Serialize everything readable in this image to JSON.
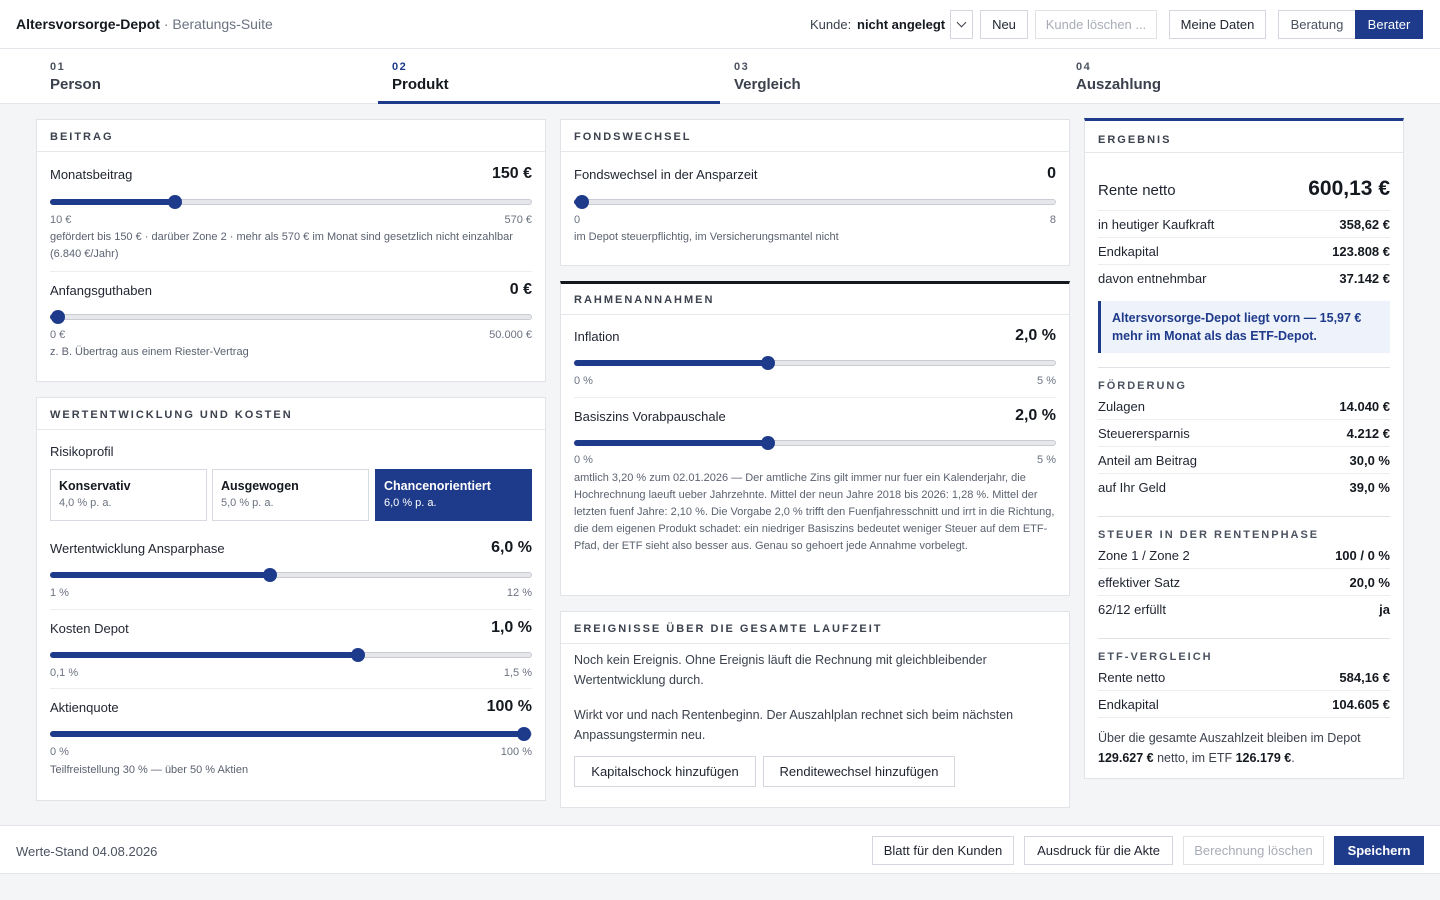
{
  "header": {
    "app_title": "Altersvorsorge-Depot",
    "app_sub": "· Beratungs-Suite",
    "kunde_label": "Kunde:",
    "kunde_value": "nicht angelegt",
    "btn_neu": "Neu",
    "btn_kunde_loeschen": "Kunde löschen ...",
    "btn_meine_daten": "Meine Daten",
    "mode_beratung": "Beratung",
    "mode_berater": "Berater"
  },
  "tabs": [
    {
      "num": "01",
      "label": "Person"
    },
    {
      "num": "02",
      "label": "Produkt"
    },
    {
      "num": "03",
      "label": "Vergleich"
    },
    {
      "num": "04",
      "label": "Auszahlung"
    }
  ],
  "beitrag": {
    "title": "BEITRAG",
    "monatsbeitrag": {
      "label": "Monatsbeitrag",
      "value_text": "150 €",
      "min": "10 €",
      "max": "570 €",
      "value": 150,
      "lo": 10,
      "hi": 570,
      "hint": "gefördert bis 150 € · darüber Zone 2 · mehr als 570 € im Monat sind gesetzlich nicht einzahlbar (6.840 €/Jahr)"
    },
    "anfangsguthaben": {
      "label": "Anfangsguthaben",
      "value_text": "0 €",
      "min": "0 €",
      "max": "50.000 €",
      "value": 0,
      "lo": 0,
      "hi": 50000,
      "hint": "z. B. Übertrag aus einem Riester-Vertrag"
    }
  },
  "wertentwicklung": {
    "title": "WERTENTWICKLUNG UND KOSTEN",
    "risikoprofil_label": "Risikoprofil",
    "profiles": [
      {
        "name": "Konservativ",
        "rate": "4,0 % p. a."
      },
      {
        "name": "Ausgewogen",
        "rate": "5,0 % p. a."
      },
      {
        "name": "Chancenorientiert",
        "rate": "6,0 % p. a."
      }
    ],
    "ansparphase": {
      "label": "Wertentwicklung Ansparphase",
      "value_text": "6,0 %",
      "min": "1 %",
      "max": "12 %",
      "value": 6.0,
      "lo": 1,
      "hi": 12
    },
    "kosten": {
      "label": "Kosten Depot",
      "value_text": "1,0 %",
      "min": "0,1 %",
      "max": "1,5 %",
      "value": 1.0,
      "lo": 0.1,
      "hi": 1.5
    },
    "aktienquote": {
      "label": "Aktienquote",
      "value_text": "100 %",
      "min": "0 %",
      "max": "100 %",
      "value": 100,
      "lo": 0,
      "hi": 100,
      "hint": "Teilfreistellung 30 % — über 50 % Aktien"
    }
  },
  "fondswechsel": {
    "title": "FONDSWECHSEL",
    "slider": {
      "label": "Fondswechsel in der Ansparzeit",
      "value_text": "0",
      "min": "0",
      "max": "8",
      "value": 0,
      "lo": 0,
      "hi": 8,
      "hint": "im Depot steuerpflichtig, im Versicherungsmantel nicht"
    }
  },
  "rahmen": {
    "title": "RAHMENANNAHMEN",
    "inflation": {
      "label": "Inflation",
      "value_text": "2,0 %",
      "min": "0 %",
      "max": "5 %",
      "value": 2.0,
      "lo": 0,
      "hi": 5
    },
    "basiszins": {
      "label": "Basiszins Vorabpauschale",
      "value_text": "2,0 %",
      "min": "0 %",
      "max": "5 %",
      "value": 2.0,
      "lo": 0,
      "hi": 5,
      "hint": "amtlich 3,20 % zum 02.01.2026 — Der amtliche Zins gilt immer nur fuer ein Kalenderjahr, die Hochrechnung laeuft ueber Jahrzehnte. Mittel der neun Jahre 2018 bis 2026: 1,28 %. Mittel der letzten fuenf Jahre: 2,10 %. Die Vorgabe 2,0 % trifft den Fuenfjahresschnitt und irrt in die Richtung, die dem eigenen Produkt schadet: ein niedriger Basiszins bedeutet weniger Steuer auf dem ETF-Pfad, der ETF sieht also besser aus. Genau so gehoert jede Annahme vorbelegt."
    }
  },
  "ereignisse": {
    "title": "EREIGNISSE ÜBER DIE GESAMTE LAUFZEIT",
    "p1": "Noch kein Ereignis. Ohne Ereignis läuft die Rechnung mit gleichbleibender Wertentwicklung durch.",
    "p2": "Wirkt vor und nach Rentenbeginn. Der Auszahlplan rechnet sich beim nächsten Anpassungstermin neu.",
    "btn_kapitalschock": "Kapitalschock hinzufügen",
    "btn_renditewechsel": "Renditewechsel hinzufügen"
  },
  "ergebnis": {
    "title": "ERGEBNIS",
    "rente_label": "Rente netto",
    "rente_value": "600,13 €",
    "rows": [
      {
        "k": "in heutiger Kaufkraft",
        "v": "358,62 €"
      },
      {
        "k": "Endkapital",
        "v": "123.808 €"
      },
      {
        "k": "davon entnehmbar",
        "v": "37.142 €"
      }
    ],
    "callout": "Altersvorsorge-Depot liegt vorn — 15,97 € mehr im Monat als das ETF-Depot.",
    "foerderung_title": "FÖRDERUNG",
    "foerderung": [
      {
        "k": "Zulagen",
        "v": "14.040 €"
      },
      {
        "k": "Steuerersparnis",
        "v": "4.212 €"
      },
      {
        "k": "Anteil am Beitrag",
        "v": "30,0 %"
      },
      {
        "k": "auf Ihr Geld",
        "v": "39,0 %"
      }
    ],
    "steuer_title": "STEUER IN DER RENTENPHASE",
    "steuer": [
      {
        "k": "Zone 1 / Zone 2",
        "v": "100 / 0 %"
      },
      {
        "k": "effektiver Satz",
        "v": "20,0 %"
      },
      {
        "k": "62/12 erfüllt",
        "v": "ja"
      }
    ],
    "etf_title": "ETF-VERGLEICH",
    "etf": [
      {
        "k": "Rente netto",
        "v": "584,16 €"
      },
      {
        "k": "Endkapital",
        "v": "104.605 €"
      }
    ],
    "summary_pre": "Über die gesamte Auszahlzeit bleiben im Depot",
    "summary_depot": "129.627 €",
    "summary_mid": "netto, im ETF",
    "summary_etf": "126.179 €",
    "summary_post": "."
  },
  "footer": {
    "stand": "Werte-Stand 04.08.2026",
    "btn_blatt": "Blatt für den Kunden",
    "btn_ausdruck": "Ausdruck für die Akte",
    "btn_loeschen": "Berechnung löschen",
    "btn_speichern": "Speichern"
  },
  "colors": {
    "accent": "#1e3a8a",
    "callout_bg": "#eef2fa"
  }
}
